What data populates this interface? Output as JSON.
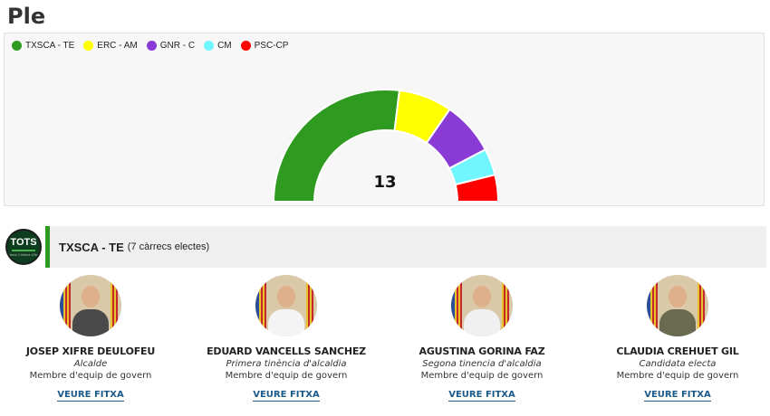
{
  "page": {
    "title": "Ple"
  },
  "chart_data": {
    "type": "pie",
    "subtype": "semicircle",
    "total_seats": 13,
    "center_label": "13",
    "series": [
      {
        "name": "TXSCA - TE",
        "value": 7,
        "color": "#2e9a1f"
      },
      {
        "name": "ERC - AM",
        "value": 2,
        "color": "#ffff00"
      },
      {
        "name": "GNR - C",
        "value": 2,
        "color": "#8a3bd6"
      },
      {
        "name": "CM",
        "value": 1,
        "color": "#6ff6ff"
      },
      {
        "name": "PSC-CP",
        "value": 1,
        "color": "#ff0000"
      }
    ],
    "legend_position": "top-left"
  },
  "party": {
    "logo_text": "TOTS",
    "logo_subtext": "Santa Cristina d'Aro",
    "name": "TXSCA - TE",
    "count_label": "(7 càrrecs electes)",
    "accent_color": "#2e9a1f"
  },
  "members": [
    {
      "name": "JOSEP XIFRE DEULOFEU",
      "role": "Alcalde",
      "team": "Membre d'equip de govern",
      "link": "VEURE FITXA",
      "suit": "#4a4a4a"
    },
    {
      "name": "EDUARD VANCELLS SANCHEZ",
      "role": "Primera tinència d'alcaldia",
      "team": "Membre d'equip de govern",
      "link": "VEURE FITXA",
      "suit": "#f4f4f4"
    },
    {
      "name": "AGUSTINA GORINA FAZ",
      "role": "Segona tinencia d'alcaldia",
      "team": "Membre d'equip de govern",
      "link": "VEURE FITXA",
      "suit": "#f0f0f0"
    },
    {
      "name": "CLAUDIA CREHUET GIL",
      "role": "Candidata electa",
      "team": "Membre d'equip de govern",
      "link": "VEURE FITXA",
      "suit": "#6a6a50"
    }
  ]
}
